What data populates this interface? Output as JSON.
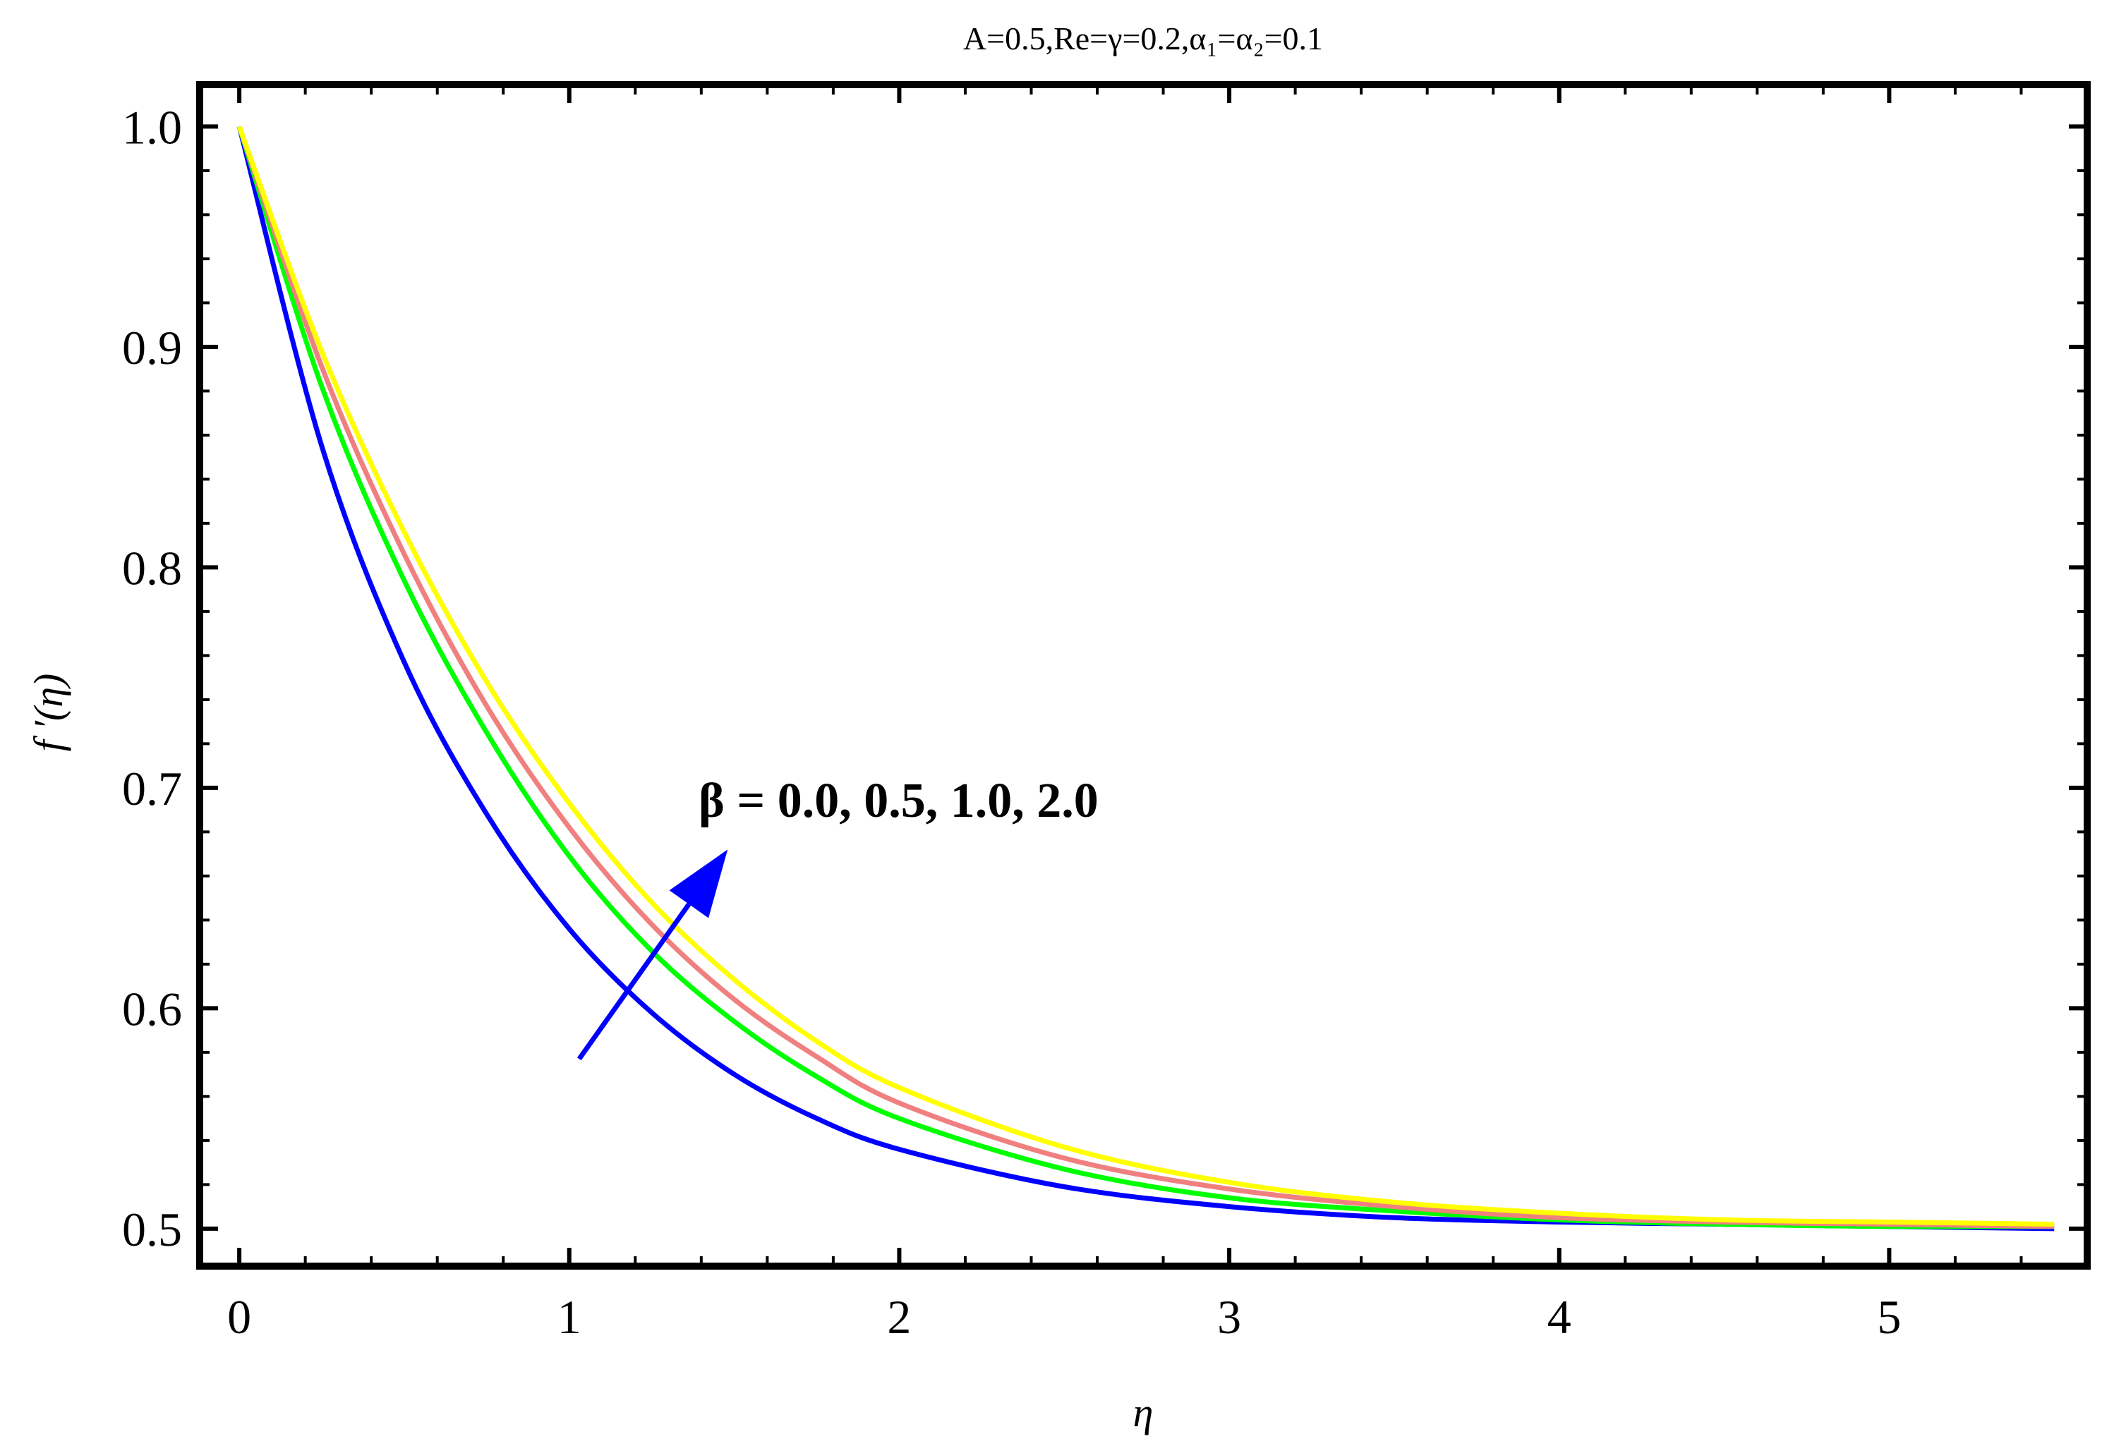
{
  "chart_data": {
    "type": "line",
    "title": "A=0.5,Re=γ=0.2,α₁=α₂=0.1",
    "xlabel": "η",
    "ylabel": "f ′(η)",
    "xlim": [
      -0.12,
      5.6
    ],
    "ylim": [
      0.483,
      1.019
    ],
    "xticks": [
      0,
      1,
      2,
      3,
      4,
      5
    ],
    "xtick_labels": [
      "0",
      "1",
      "2",
      "3",
      "4",
      "5"
    ],
    "yticks": [
      0.5,
      0.6,
      0.7,
      0.8,
      0.9,
      1.0
    ],
    "ytick_labels": [
      "0.5",
      "0.6",
      "0.7",
      "0.8",
      "0.9",
      "1.0"
    ],
    "grid": false,
    "annotation": {
      "text": "β = 0.0, 0.5, 1.0, 2.0",
      "arrow_from": [
        1.03,
        0.577
      ],
      "arrow_to": [
        1.48,
        0.672
      ],
      "arrow_color": "#0000ff"
    },
    "series": [
      {
        "color": "#0000ff",
        "x": [
          0,
          0.25,
          0.5,
          0.75,
          1.0,
          1.25,
          1.5,
          1.75,
          2.0,
          2.5,
          3.0,
          3.5,
          4.0,
          4.5,
          5.0,
          5.5
        ],
        "y": [
          1.0,
          0.855,
          0.757,
          0.688,
          0.636,
          0.598,
          0.57,
          0.55,
          0.536,
          0.519,
          0.51,
          0.505,
          0.503,
          0.502,
          0.501,
          0.5
        ]
      },
      {
        "color": "#00ff00",
        "x": [
          0,
          0.25,
          0.5,
          0.75,
          1.0,
          1.25,
          1.5,
          1.75,
          2.0,
          2.5,
          3.0,
          3.5,
          4.0,
          4.5,
          5.0,
          5.5
        ],
        "y": [
          1.0,
          0.882,
          0.794,
          0.725,
          0.669,
          0.626,
          0.594,
          0.569,
          0.55,
          0.527,
          0.514,
          0.508,
          0.504,
          0.502,
          0.501,
          0.501
        ]
      },
      {
        "color": "#f08080",
        "x": [
          0,
          0.25,
          0.5,
          0.75,
          1.0,
          1.25,
          1.5,
          1.75,
          2.0,
          2.5,
          3.0,
          3.5,
          4.0,
          4.5,
          5.0,
          5.5
        ],
        "y": [
          1.0,
          0.891,
          0.806,
          0.737,
          0.682,
          0.638,
          0.604,
          0.578,
          0.557,
          0.532,
          0.518,
          0.51,
          0.505,
          0.503,
          0.502,
          0.501
        ]
      },
      {
        "color": "#ffff00",
        "x": [
          0,
          0.25,
          0.5,
          0.75,
          1.0,
          1.25,
          1.5,
          1.75,
          2.0,
          2.5,
          3.0,
          3.5,
          4.0,
          4.5,
          5.0,
          5.5
        ],
        "y": [
          1.0,
          0.898,
          0.816,
          0.748,
          0.693,
          0.648,
          0.613,
          0.585,
          0.564,
          0.537,
          0.521,
          0.512,
          0.507,
          0.504,
          0.503,
          0.502
        ]
      }
    ]
  }
}
